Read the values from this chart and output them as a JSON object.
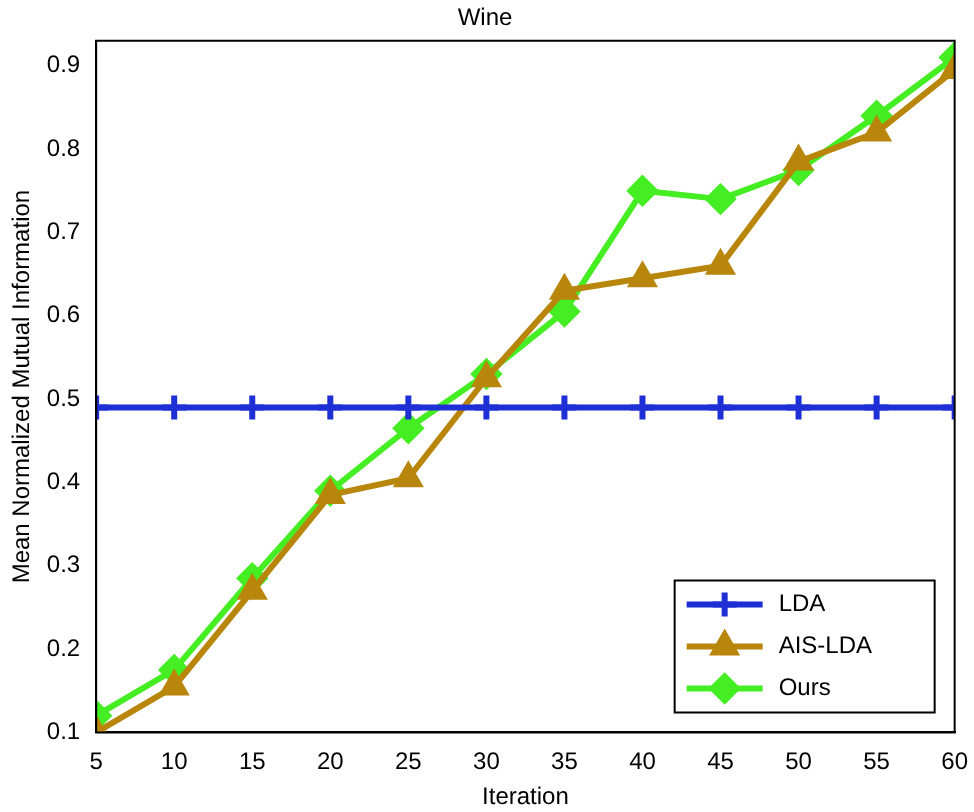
{
  "chart_data": {
    "type": "line",
    "title": "Wine",
    "xlabel": "Iteration",
    "ylabel": "Mean Normalized Mutual Information",
    "x": [
      5,
      10,
      15,
      20,
      25,
      30,
      35,
      40,
      45,
      50,
      55,
      60
    ],
    "series": [
      {
        "name": "LDA",
        "color": "#1f2fd6",
        "marker": "cross",
        "values": [
          0.49,
          0.49,
          0.49,
          0.49,
          0.49,
          0.49,
          0.49,
          0.49,
          0.49,
          0.49,
          0.49,
          0.49
        ]
      },
      {
        "name": "AIS-LDA",
        "color": "#b8860b",
        "marker": "triangle",
        "values": [
          0.1,
          0.155,
          0.27,
          0.385,
          0.405,
          0.525,
          0.63,
          0.645,
          0.66,
          0.785,
          0.82,
          0.895
        ]
      },
      {
        "name": "Ours",
        "color": "#44ee22",
        "marker": "diamond",
        "values": [
          0.12,
          0.175,
          0.285,
          0.39,
          0.465,
          0.53,
          0.605,
          0.75,
          0.74,
          0.775,
          0.84,
          0.91
        ]
      }
    ],
    "xlim": [
      5,
      60
    ],
    "xticks": [
      5,
      10,
      15,
      20,
      25,
      30,
      35,
      40,
      45,
      50,
      55,
      60
    ],
    "ylim": [
      0.1,
      0.93
    ],
    "yticks": [
      0.1,
      0.2,
      0.3,
      0.4,
      0.5,
      0.6,
      0.7,
      0.8,
      0.9
    ],
    "grid": false,
    "legend": "bottom right",
    "line_style": "solid"
  }
}
